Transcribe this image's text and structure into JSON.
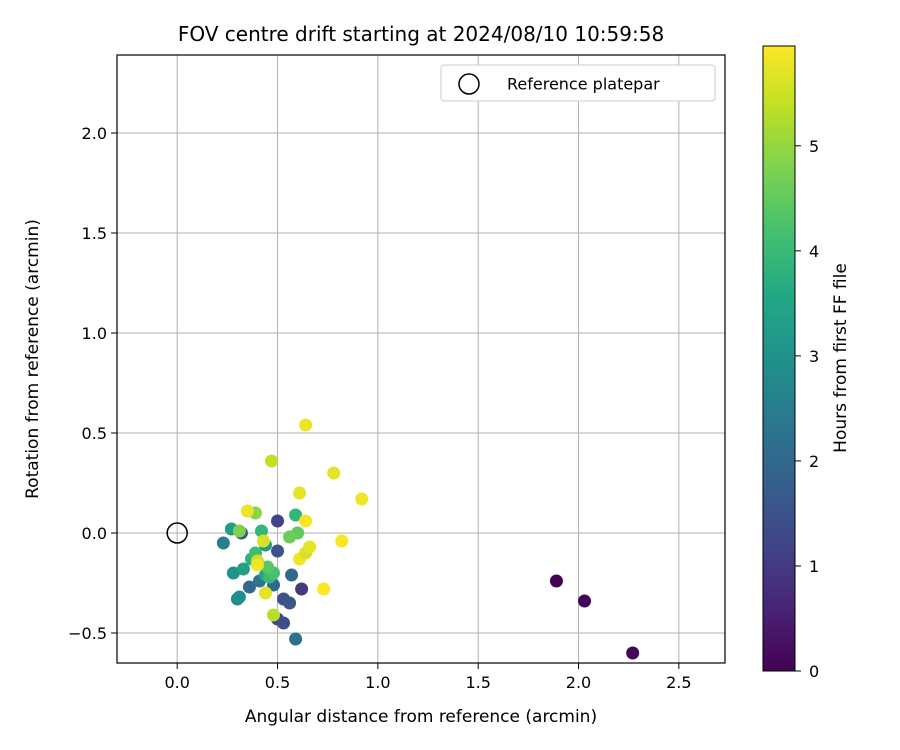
{
  "chart_data": {
    "type": "scatter",
    "title": "FOV centre drift starting at 2024/08/10 10:59:58",
    "xlabel": "Angular distance from reference (arcmin)",
    "ylabel": "Rotation from reference (arcmin)",
    "xlim": [
      -0.3,
      2.73
    ],
    "ylim": [
      -0.65,
      2.39
    ],
    "xticks": [
      0.0,
      0.5,
      1.0,
      1.5,
      2.0,
      2.5
    ],
    "xtick_labels": [
      "0.0",
      "0.5",
      "1.0",
      "1.5",
      "2.0",
      "2.5"
    ],
    "yticks": [
      -0.5,
      0.0,
      0.5,
      1.0,
      1.5,
      2.0
    ],
    "ytick_labels": [
      "−0.5",
      "0.0",
      "0.5",
      "1.0",
      "1.5",
      "2.0"
    ],
    "grid": true,
    "legend": {
      "position": "top-right",
      "entries": [
        "Reference platepar"
      ]
    },
    "reference_point": {
      "x": 0.0,
      "y": 0.0,
      "marker": "open-circle"
    },
    "colorbar": {
      "label": "Hours from first FF file",
      "colormap": "viridis",
      "range": [
        0,
        5.95
      ],
      "ticks": [
        0,
        1,
        2,
        3,
        4,
        5
      ],
      "tick_labels": [
        "0",
        "1",
        "2",
        "3",
        "4",
        "5"
      ]
    },
    "points": [
      {
        "x": 1.89,
        "y": -0.24,
        "c": 0.0
      },
      {
        "x": 2.03,
        "y": -0.34,
        "c": 0.05
      },
      {
        "x": 2.27,
        "y": -0.6,
        "c": 0.1
      },
      {
        "x": 0.5,
        "y": 0.06,
        "c": 1.2
      },
      {
        "x": 0.5,
        "y": -0.09,
        "c": 1.5
      },
      {
        "x": 0.5,
        "y": -0.43,
        "c": 1.3
      },
      {
        "x": 0.53,
        "y": -0.45,
        "c": 1.4
      },
      {
        "x": 0.53,
        "y": -0.33,
        "c": 1.5
      },
      {
        "x": 0.56,
        "y": -0.35,
        "c": 1.6
      },
      {
        "x": 0.57,
        "y": -0.21,
        "c": 2.0
      },
      {
        "x": 0.62,
        "y": -0.28,
        "c": 1.0
      },
      {
        "x": 0.59,
        "y": -0.53,
        "c": 2.2
      },
      {
        "x": 0.32,
        "y": 0.0,
        "c": 1.6
      },
      {
        "x": 0.36,
        "y": -0.27,
        "c": 2.0
      },
      {
        "x": 0.41,
        "y": -0.24,
        "c": 2.3
      },
      {
        "x": 0.48,
        "y": -0.26,
        "c": 2.0
      },
      {
        "x": 0.3,
        "y": -0.33,
        "c": 2.8
      },
      {
        "x": 0.31,
        "y": -0.32,
        "c": 2.9
      },
      {
        "x": 0.28,
        "y": -0.2,
        "c": 3.0
      },
      {
        "x": 0.23,
        "y": -0.05,
        "c": 2.6
      },
      {
        "x": 0.27,
        "y": 0.02,
        "c": 3.3
      },
      {
        "x": 0.33,
        "y": -0.18,
        "c": 3.4
      },
      {
        "x": 0.37,
        "y": -0.13,
        "c": 3.8
      },
      {
        "x": 0.39,
        "y": -0.1,
        "c": 4.1
      },
      {
        "x": 0.42,
        "y": 0.01,
        "c": 3.9
      },
      {
        "x": 0.44,
        "y": -0.06,
        "c": 3.2
      },
      {
        "x": 0.46,
        "y": -0.19,
        "c": 3.6
      },
      {
        "x": 0.44,
        "y": -0.21,
        "c": 3.5
      },
      {
        "x": 0.46,
        "y": -0.22,
        "c": 4.0
      },
      {
        "x": 0.48,
        "y": -0.2,
        "c": 4.2
      },
      {
        "x": 0.45,
        "y": -0.17,
        "c": 4.4
      },
      {
        "x": 0.59,
        "y": 0.09,
        "c": 3.9
      },
      {
        "x": 0.6,
        "y": 0.0,
        "c": 4.5
      },
      {
        "x": 0.56,
        "y": -0.02,
        "c": 4.6
      },
      {
        "x": 0.31,
        "y": 0.01,
        "c": 4.8
      },
      {
        "x": 0.39,
        "y": 0.1,
        "c": 4.9
      },
      {
        "x": 0.48,
        "y": -0.41,
        "c": 5.3
      },
      {
        "x": 0.47,
        "y": 0.36,
        "c": 5.4
      },
      {
        "x": 0.4,
        "y": -0.14,
        "c": 5.5
      },
      {
        "x": 0.43,
        "y": -0.04,
        "c": 5.6
      },
      {
        "x": 0.4,
        "y": -0.16,
        "c": 5.8
      },
      {
        "x": 0.44,
        "y": -0.3,
        "c": 5.7
      },
      {
        "x": 0.35,
        "y": 0.11,
        "c": 5.8
      },
      {
        "x": 0.61,
        "y": 0.2,
        "c": 5.7
      },
      {
        "x": 0.64,
        "y": 0.06,
        "c": 5.9
      },
      {
        "x": 0.61,
        "y": -0.13,
        "c": 5.8
      },
      {
        "x": 0.64,
        "y": -0.1,
        "c": 5.6
      },
      {
        "x": 0.66,
        "y": -0.07,
        "c": 5.7
      },
      {
        "x": 0.64,
        "y": 0.54,
        "c": 5.8
      },
      {
        "x": 0.73,
        "y": -0.28,
        "c": 5.95
      },
      {
        "x": 0.78,
        "y": 0.3,
        "c": 5.7
      },
      {
        "x": 0.82,
        "y": -0.04,
        "c": 5.9
      },
      {
        "x": 0.92,
        "y": 0.17,
        "c": 5.8
      }
    ]
  }
}
